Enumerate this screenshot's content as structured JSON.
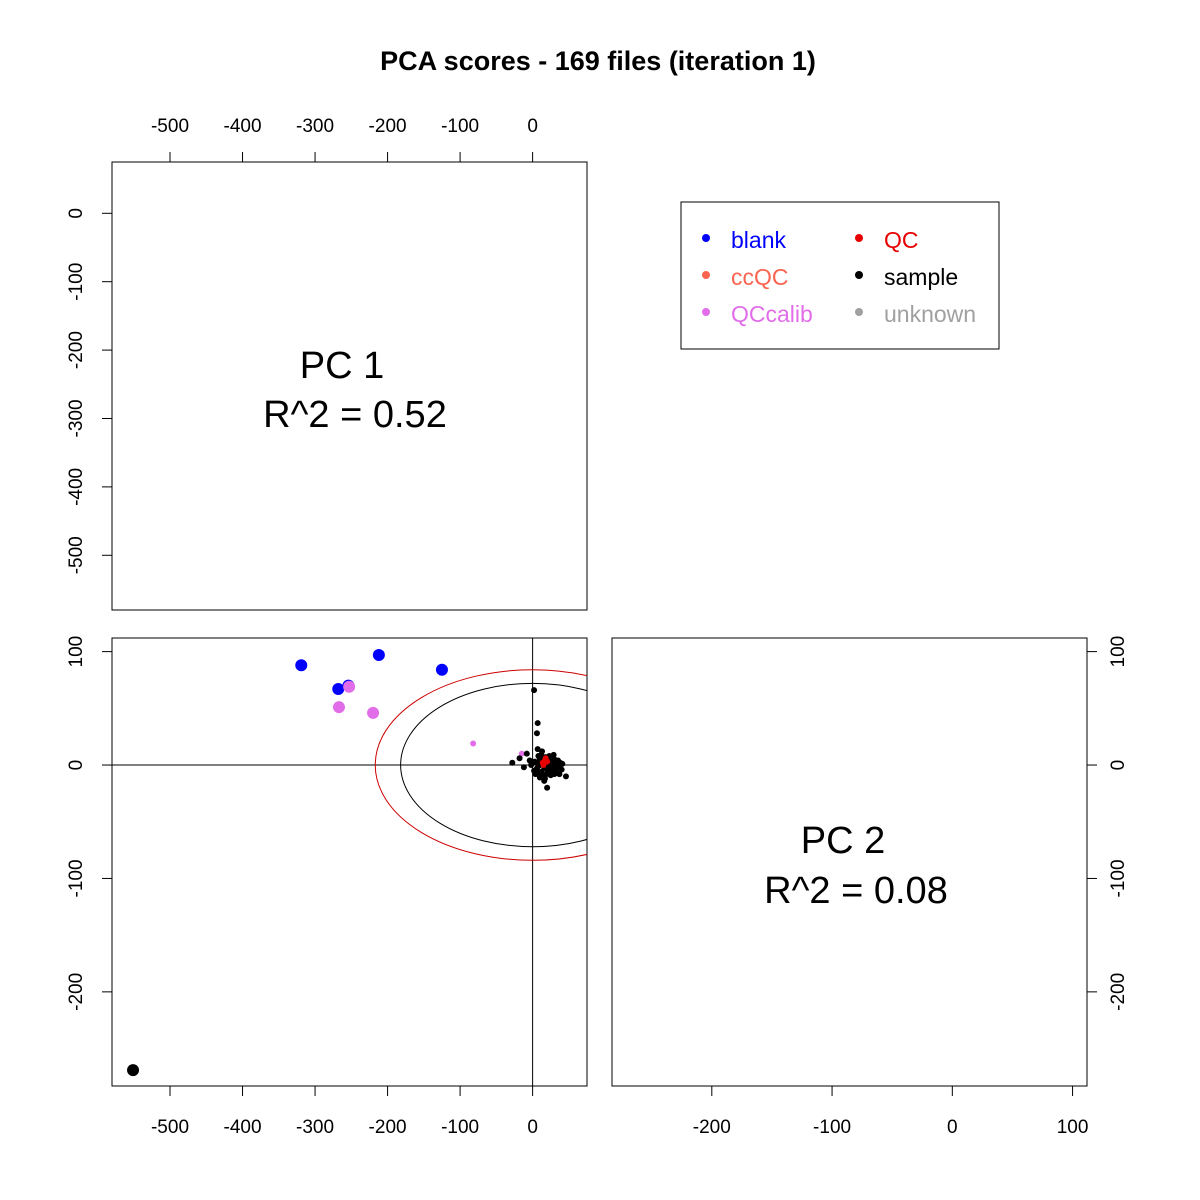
{
  "chart_data": {
    "type": "scatter",
    "title": "PCA scores - 169 files (iteration 1)",
    "pc1_range": [
      -580,
      75
    ],
    "pc2_range": [
      -283,
      112
    ],
    "pc1_ticks": [
      -500,
      -400,
      -300,
      -200,
      -100,
      0
    ],
    "pc1_ticks_bottom_right": [
      -200,
      -100,
      0,
      100
    ],
    "pc2_ticks": [
      -200,
      -100,
      0,
      100
    ],
    "pc1_ticks_left_top": [
      0,
      -100,
      -200,
      -300,
      -400,
      -500
    ],
    "diag": [
      {
        "label": "PC 1",
        "r2": "R^2 = 0.52"
      },
      {
        "label": "PC 2",
        "r2": "R^2 = 0.08"
      }
    ],
    "legend": {
      "placement": "top-right",
      "items": [
        {
          "label": "blank",
          "color": "#0000ff"
        },
        {
          "label": "QC",
          "color": "#e60000"
        },
        {
          "label": "ccQC",
          "color": "#fa6450"
        },
        {
          "label": "sample",
          "color": "#000000"
        },
        {
          "label": "QCcalib",
          "color": "#e16ee8"
        },
        {
          "label": "unknown",
          "color": "#a0a0a0"
        }
      ]
    },
    "ellipses": [
      {
        "color": "#000000",
        "cx": 0,
        "cy": 0,
        "rx": 182,
        "ry": 72
      },
      {
        "color": "#cc0000",
        "cx": 0,
        "cy": 0,
        "rx": 217,
        "ry": 84
      }
    ],
    "series": [
      {
        "name": "blank",
        "color": "#0000ff",
        "size": "large",
        "points": [
          [
            -319,
            88
          ],
          [
            -212,
            97
          ],
          [
            -125,
            84
          ],
          [
            -268,
            67
          ],
          [
            -254,
            70
          ]
        ]
      },
      {
        "name": "QCcalib",
        "color": "#e16ee8",
        "size": "large",
        "points": [
          [
            -253,
            69
          ],
          [
            -267,
            51
          ],
          [
            -220,
            46
          ]
        ]
      },
      {
        "name": "QCcalib",
        "color": "#e16ee8",
        "size": "small",
        "points": [
          [
            -82,
            19
          ],
          [
            -15,
            10
          ]
        ]
      },
      {
        "name": "sample",
        "color": "#000000",
        "size": "large",
        "points": [
          [
            -551,
            -269
          ]
        ]
      },
      {
        "name": "sample",
        "color": "#000000",
        "size": "small",
        "points": [
          [
            2,
            66
          ],
          [
            7,
            37
          ],
          [
            6,
            28
          ],
          [
            -8,
            10
          ],
          [
            -18,
            6
          ],
          [
            -28,
            2
          ],
          [
            -12,
            -2
          ],
          [
            -4,
            4
          ],
          [
            2,
            -5
          ],
          [
            5,
            2
          ],
          [
            8,
            -1
          ],
          [
            10,
            5
          ],
          [
            12,
            -6
          ],
          [
            14,
            2
          ],
          [
            16,
            -3
          ],
          [
            18,
            4
          ],
          [
            20,
            -1
          ],
          [
            22,
            3
          ],
          [
            24,
            -4
          ],
          [
            26,
            1
          ],
          [
            28,
            -2
          ],
          [
            30,
            3
          ],
          [
            32,
            -5
          ],
          [
            34,
            0
          ],
          [
            36,
            -2
          ],
          [
            38,
            2
          ],
          [
            40,
            -4
          ],
          [
            46,
            -10
          ],
          [
            10,
            -11
          ],
          [
            16,
            -14
          ],
          [
            20,
            -20
          ],
          [
            8,
            8
          ],
          [
            12,
            9
          ],
          [
            18,
            7
          ],
          [
            24,
            6
          ],
          [
            30,
            5
          ],
          [
            35,
            4
          ],
          [
            4,
            -8
          ],
          [
            9,
            -7
          ],
          [
            14,
            -9
          ],
          [
            19,
            -8
          ],
          [
            25,
            -9
          ],
          [
            30,
            -8
          ],
          [
            6,
            -3
          ],
          [
            11,
            1
          ],
          [
            15,
            6
          ],
          [
            21,
            -6
          ],
          [
            27,
            -5
          ],
          [
            33,
            -7
          ],
          [
            3,
            3
          ],
          [
            23,
            8
          ],
          [
            29,
            9
          ],
          [
            17,
            -12
          ],
          [
            13,
            12
          ],
          [
            -2,
            0
          ],
          [
            41,
            1
          ],
          [
            37,
            -8
          ],
          [
            7,
            14
          ]
        ]
      },
      {
        "name": "QC",
        "color": "#e60000",
        "size": "small",
        "points": [
          [
            14,
            2
          ],
          [
            17,
            4
          ],
          [
            20,
            3
          ],
          [
            18,
            6
          ],
          [
            15,
            0
          ]
        ]
      }
    ]
  }
}
